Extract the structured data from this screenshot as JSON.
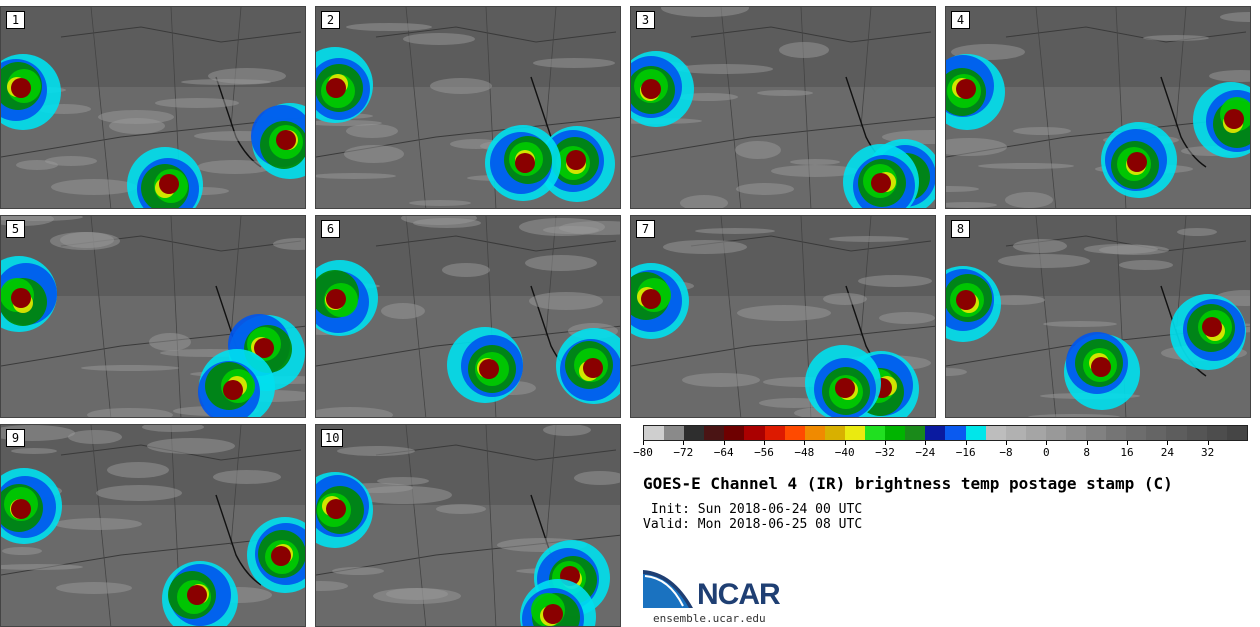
{
  "panels": [
    {
      "label": "1"
    },
    {
      "label": "2"
    },
    {
      "label": "3"
    },
    {
      "label": "4"
    },
    {
      "label": "5"
    },
    {
      "label": "6"
    },
    {
      "label": "7"
    },
    {
      "label": "8"
    },
    {
      "label": "9"
    },
    {
      "label": "10"
    }
  ],
  "colorbar": {
    "min": -80,
    "max": 40,
    "colors": [
      "#cfcfcf",
      "#8a8a8a",
      "#2e2e2e",
      "#4a1414",
      "#6e0000",
      "#aa0000",
      "#dd1a00",
      "#ff4a00",
      "#f08a00",
      "#d8b000",
      "#eaea10",
      "#20e020",
      "#00b400",
      "#1a8a1a",
      "#0a1aa0",
      "#0a5af0",
      "#00e6ea",
      "#bdbdbd",
      "#b1b1b1",
      "#a5a5a5",
      "#999999",
      "#8d8d8d",
      "#818181",
      "#757575",
      "#6d6d6d",
      "#656565",
      "#5d5d5d",
      "#555555",
      "#4d4d4d",
      "#454545"
    ],
    "ticks": [
      "−80",
      "−72",
      "−64",
      "−56",
      "−48",
      "−40",
      "−32",
      "−24",
      "−16",
      "−8",
      "0",
      "8",
      "16",
      "24",
      "32"
    ],
    "tick_values": [
      -80,
      -72,
      -64,
      -56,
      -48,
      -40,
      -32,
      -24,
      -16,
      -8,
      0,
      8,
      16,
      24,
      32
    ]
  },
  "title": "GOES-E Channel 4 (IR) brightness temp postage stamp (C)",
  "init_line": " Init: Sun 2018-06-24 00 UTC",
  "valid_line": "Valid: Mon 2018-06-25 08 UTC",
  "logo_text": "NCAR",
  "site": "ensemble.ucar.edu"
}
